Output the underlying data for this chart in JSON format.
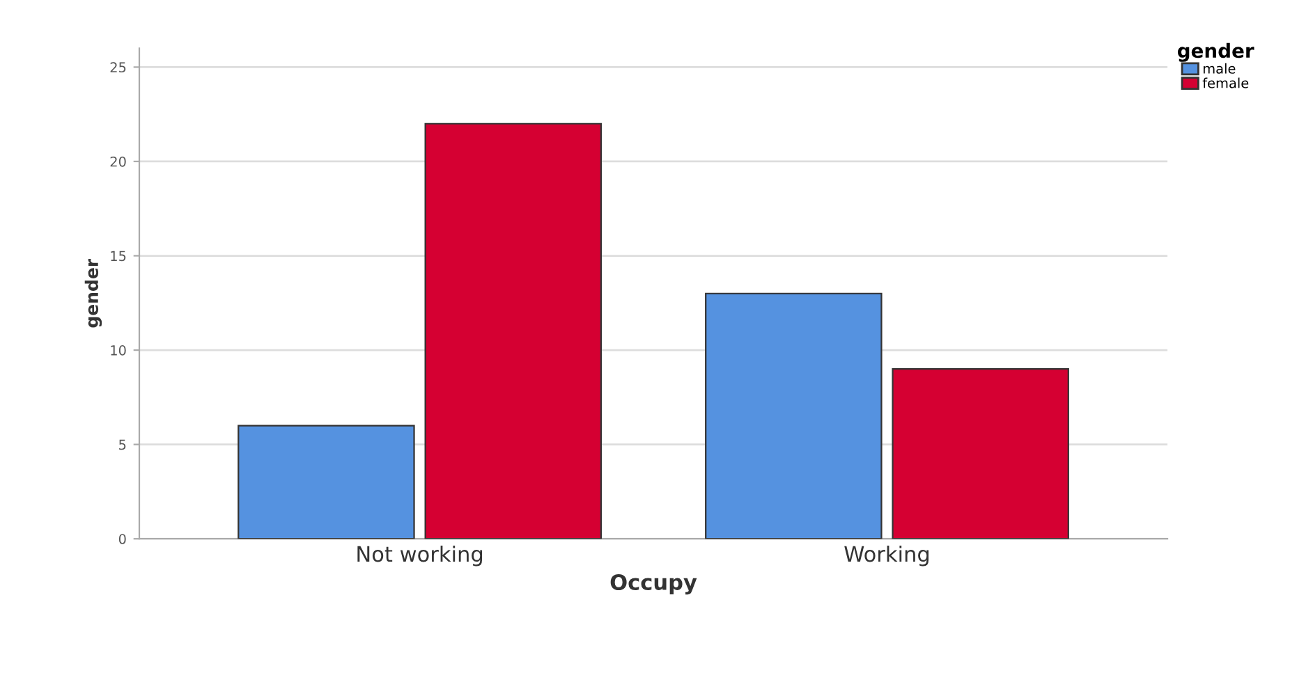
{
  "chart_data": {
    "type": "bar",
    "xlabel": "Occupy",
    "ylabel": "gender",
    "legend_title": "gender",
    "categories": [
      "Not working",
      "Working"
    ],
    "series": [
      {
        "name": "male",
        "color": "#5592e0",
        "values": [
          6,
          13
        ]
      },
      {
        "name": "female",
        "color": "#d50032",
        "values": [
          22,
          9
        ]
      }
    ],
    "ylim": [
      0,
      26
    ],
    "yticks": [
      0,
      5,
      10,
      15,
      20,
      25
    ],
    "grid": "y",
    "legend": "top right"
  }
}
